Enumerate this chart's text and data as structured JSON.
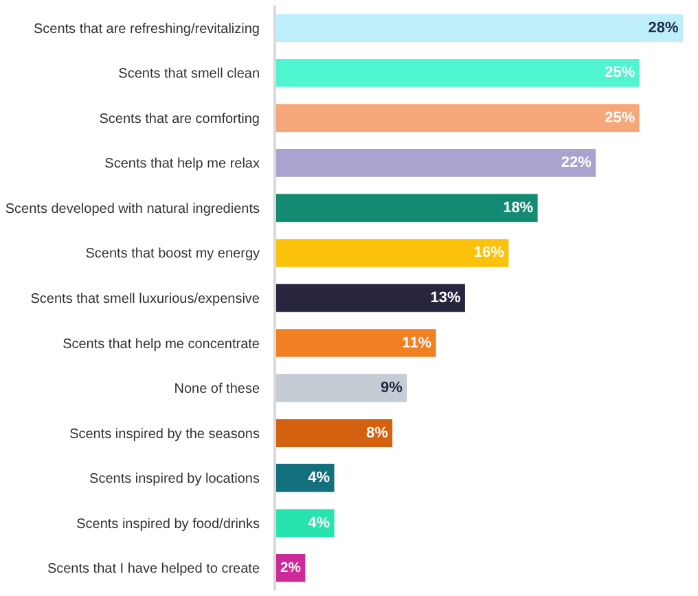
{
  "chart_data": {
    "type": "bar",
    "orientation": "horizontal",
    "value_labels": [
      "28%",
      "25%",
      "25%",
      "22%",
      "18%",
      "16%",
      "13%",
      "11%",
      "9%",
      "8%",
      "4%",
      "4%",
      "2%"
    ],
    "categories": [
      "Scents that are refreshing/revitalizing",
      "Scents that smell clean",
      "Scents that are comforting",
      "Scents that help me relax",
      "Scents developed with natural ingredients",
      "Scents that boost my energy",
      "Scents that smell luxurious/expensive",
      "Scents that help me concentrate",
      "None of these",
      "Scents inspired by the seasons",
      "Scents inspired by locations",
      "Scents inspired by food/drinks",
      "Scents that I have helped to create"
    ],
    "values": [
      28,
      25,
      25,
      22,
      18,
      16,
      13,
      11,
      9,
      8,
      4,
      4,
      2
    ],
    "colors": [
      "#bfeefb",
      "#4ff5d0",
      "#f5a77a",
      "#a8a3cf",
      "#138a72",
      "#fcc20a",
      "#28253f",
      "#f27f22",
      "#c5ccd3",
      "#d4610f",
      "#146f7d",
      "#27e3ad",
      "#cc2a98"
    ]
  }
}
